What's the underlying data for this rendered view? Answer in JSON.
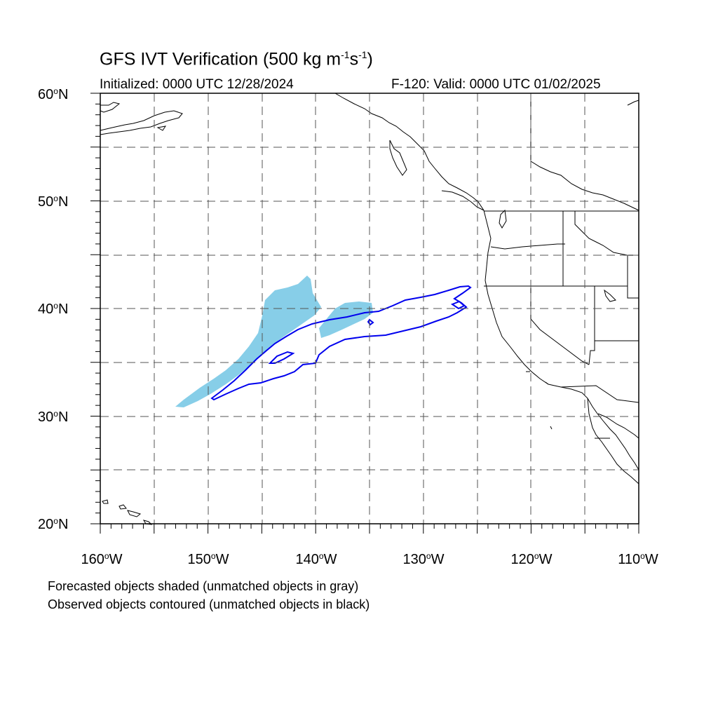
{
  "title": {
    "main": "GFS IVT Verification (500 kg m",
    "sup1": "-1",
    "mid": "s",
    "sup2": "-1",
    "end": ")"
  },
  "initialized": "Initialized: 0000 UTC 12/28/2024",
  "valid": "F-120: Valid: 0000 UTC 01/02/2025",
  "map": {
    "lat_range": [
      20,
      60
    ],
    "lon_range": [
      -160,
      -110
    ],
    "grid": "dashed, every 5 degrees",
    "lat_labels": [
      {
        "value": "60",
        "suffix": "N"
      },
      {
        "value": "50",
        "suffix": "N"
      },
      {
        "value": "40",
        "suffix": "N"
      },
      {
        "value": "30",
        "suffix": "N"
      },
      {
        "value": "20",
        "suffix": "N"
      }
    ],
    "lon_labels": [
      {
        "value": "160",
        "suffix": "W"
      },
      {
        "value": "150",
        "suffix": "W"
      },
      {
        "value": "140",
        "suffix": "W"
      },
      {
        "value": "130",
        "suffix": "W"
      },
      {
        "value": "120",
        "suffix": "W"
      },
      {
        "value": "110",
        "suffix": "W"
      }
    ],
    "forecast_fill_color": "#87CEE8",
    "observed_contour_color": "#0000EE",
    "coastline_color": "#000000"
  },
  "notes": [
    "Forecasted objects shaded (unmatched objects in gray)",
    "Observed objects contoured (unmatched objects in black)"
  ]
}
